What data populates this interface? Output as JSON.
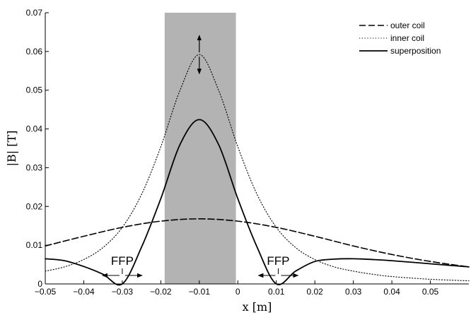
{
  "chart_data": {
    "type": "line",
    "xlabel": "x [m]",
    "ylabel": "|B| [T]",
    "xlim": [
      -0.05,
      0.06
    ],
    "ylim": [
      0,
      0.07
    ],
    "x_ticks": [
      -0.05,
      -0.04,
      -0.03,
      -0.02,
      -0.01,
      0,
      0.01,
      0.02,
      0.03,
      0.04,
      0.05
    ],
    "x_tick_labels": [
      "−0.05",
      "−0.04",
      "−0.03",
      "−0.02",
      "−0.01",
      "0",
      "0.01",
      "0.02",
      "0.03",
      "0.04",
      "0.05"
    ],
    "y_ticks": [
      0,
      0.01,
      0.02,
      0.03,
      0.04,
      0.05,
      0.06,
      0.07
    ],
    "y_tick_labels": [
      "0",
      "0.01",
      "0.02",
      "0.03",
      "0.04",
      "0.05",
      "0.06",
      "0.07"
    ],
    "grid": false,
    "legend_position": "top-right",
    "shaded_region": {
      "x": [
        -0.019,
        -0.0005
      ],
      "color": "#b3b3b3"
    },
    "series": [
      {
        "name": "outer coil",
        "style": "dashdot",
        "color": "#000000",
        "x": [
          -0.05,
          -0.04,
          -0.03,
          -0.02,
          -0.01,
          0,
          0.01,
          0.02,
          0.03,
          0.04,
          0.05,
          0.06
        ],
        "y": [
          0.0098,
          0.0123,
          0.0146,
          0.0162,
          0.0168,
          0.0162,
          0.0146,
          0.0123,
          0.0098,
          0.0076,
          0.0058,
          0.0044
        ]
      },
      {
        "name": "inner coil",
        "style": "dotted",
        "color": "#000000",
        "x": [
          -0.05,
          -0.045,
          -0.04,
          -0.035,
          -0.03,
          -0.025,
          -0.02,
          -0.015,
          -0.01,
          -0.005,
          0,
          0.005,
          0.01,
          0.015,
          0.02,
          0.025,
          0.03,
          0.035,
          0.04,
          0.05,
          0.06
        ],
        "y": [
          0.0033,
          0.0044,
          0.0063,
          0.0094,
          0.0146,
          0.0231,
          0.0354,
          0.05,
          0.0592,
          0.05,
          0.0354,
          0.0231,
          0.0146,
          0.0094,
          0.0063,
          0.0044,
          0.0033,
          0.0025,
          0.0019,
          0.0012,
          0.0008
        ]
      },
      {
        "name": "superposition",
        "style": "solid",
        "color": "#000000",
        "x": [
          -0.05,
          -0.045,
          -0.04,
          -0.035,
          -0.03,
          -0.025,
          -0.02,
          -0.015,
          -0.01,
          -0.005,
          0,
          0.005,
          0.01,
          0.015,
          0.02,
          0.025,
          0.03,
          0.035,
          0.04,
          0.05,
          0.06
        ],
        "y": [
          0.0065,
          0.006,
          0.0045,
          0.0025,
          0.0,
          0.0095,
          0.022,
          0.036,
          0.0424,
          0.036,
          0.022,
          0.0095,
          0.0,
          0.0033,
          0.0058,
          0.0064,
          0.0065,
          0.0063,
          0.006,
          0.0052,
          0.0044
        ]
      }
    ],
    "annotations": [
      {
        "text": "FFP",
        "x": -0.03
      },
      {
        "text": "FFP",
        "x": 0.0105
      }
    ]
  }
}
